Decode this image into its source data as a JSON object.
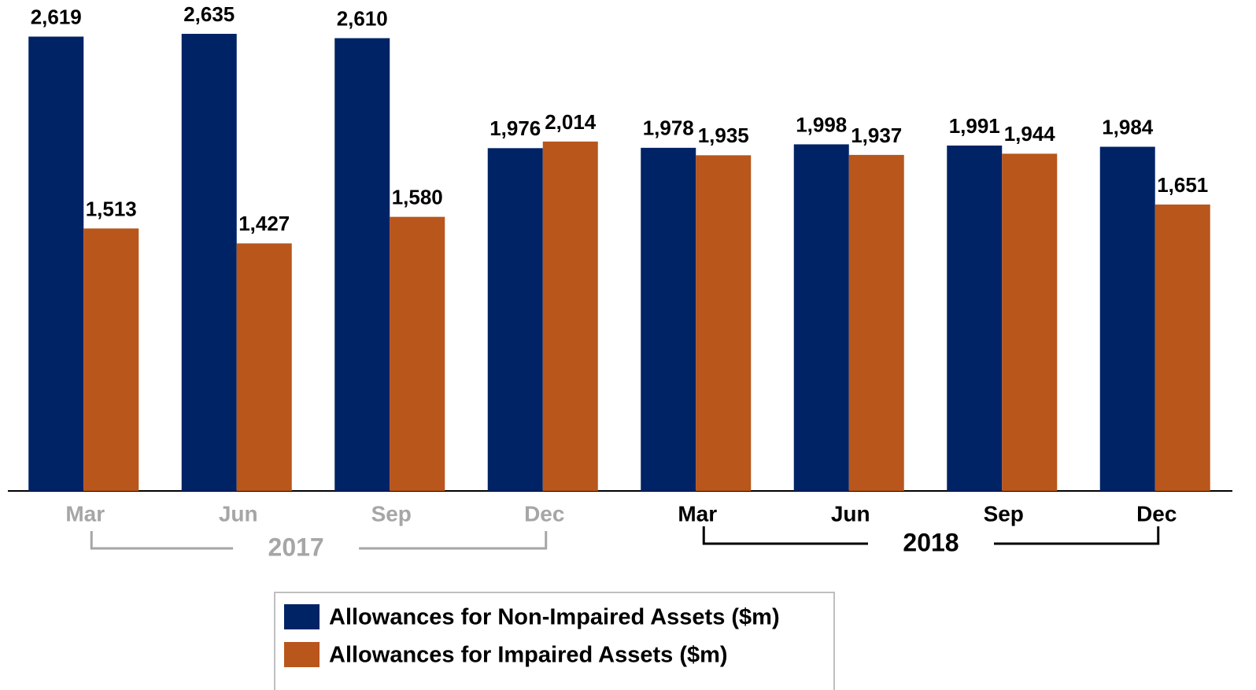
{
  "chart_data": {
    "type": "bar",
    "groups": [
      {
        "label": "2017",
        "color": "#a6a6a6",
        "categories": [
          "Mar",
          "Jun",
          "Sep",
          "Dec"
        ]
      },
      {
        "label": "2018",
        "color": "#000000",
        "categories": [
          "Mar",
          "Jun",
          "Sep",
          "Dec"
        ]
      }
    ],
    "series": [
      {
        "name": "Allowances for Non-Impaired Assets ($m)",
        "color": "#002366",
        "values": [
          2619,
          2635,
          2610,
          1976,
          1978,
          1998,
          1991,
          1984
        ],
        "value_labels": [
          "2,619",
          "2,635",
          "2,610",
          "1,976",
          "1,978",
          "1,998",
          "1,991",
          "1,984"
        ]
      },
      {
        "name": "Allowances for Impaired Assets ($m)",
        "color": "#b8561c",
        "values": [
          1513,
          1427,
          1580,
          2014,
          1935,
          1937,
          1944,
          1651
        ],
        "value_labels": [
          "1,513",
          "1,427",
          "1,580",
          "2,014",
          "1,935",
          "1,937",
          "1,944",
          "1,651"
        ]
      }
    ],
    "ylim": [
      0,
      2830
    ]
  }
}
